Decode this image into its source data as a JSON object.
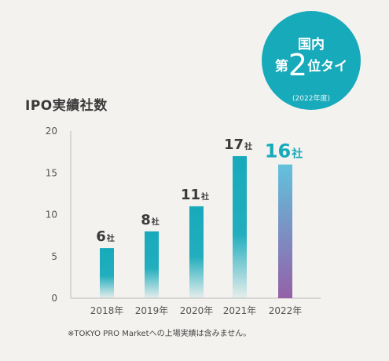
{
  "title": "IPO実績社数",
  "badge": {
    "line1": "国内",
    "prefix": "第",
    "rank": "2",
    "suffix": "位タイ",
    "note": "(2022年度)"
  },
  "footnote": "※TOKYO PRO Marketへの上場実績は含みません。",
  "colors": {
    "bar_top": "#17aabb",
    "highlight_top": "#62c2dd",
    "highlight_bottom": "#9460a8",
    "highlight_label": "#17aabb",
    "badge": "#17aabb",
    "axis": "#bbbbbb",
    "label": "#3a3a3a"
  },
  "chart_data": {
    "type": "bar",
    "title": "IPO実績社数",
    "categories": [
      "2018年",
      "2019年",
      "2020年",
      "2021年",
      "2022年"
    ],
    "values": [
      6,
      8,
      11,
      17,
      16
    ],
    "value_labels": [
      "6",
      "8",
      "11",
      "17",
      "16"
    ],
    "unit_label": "社",
    "ylim": [
      0,
      20
    ],
    "yticks": [
      "0",
      "5",
      "10",
      "15",
      "20"
    ],
    "highlight_index": 4,
    "grid": false
  }
}
